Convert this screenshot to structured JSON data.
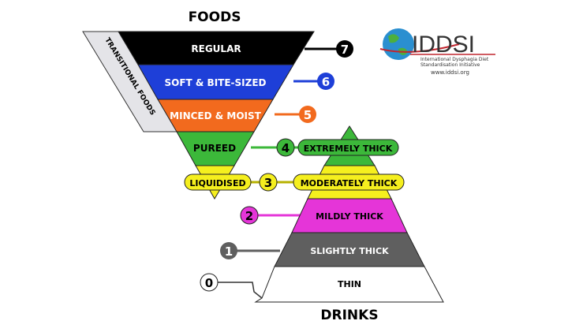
{
  "title_foods": "FOODS",
  "title_drinks": "DRINKS",
  "transitional": "TRANSITIONAL FOODS",
  "levels": [
    {
      "num": "0",
      "label": "THIN",
      "color": "#ffffff",
      "text": "#000000"
    },
    {
      "num": "1",
      "label": "SLIGHTLY THICK",
      "color": "#5f5f5f",
      "text": "#ffffff"
    },
    {
      "num": "2",
      "label": "MILDLY THICK",
      "color": "#e535d8",
      "text": "#000000"
    },
    {
      "num": "3",
      "label": "MODERATELY THICK",
      "food_label": "LIQUIDISED",
      "color": "#f5ef1e",
      "text": "#000000"
    },
    {
      "num": "4",
      "label": "EXTREMELY THICK",
      "food_label": "PUREED",
      "color": "#3cb83a",
      "text": "#000000"
    },
    {
      "num": "5",
      "food_label": "MINCED & MOIST",
      "color": "#f26a1e",
      "text": "#ffffff"
    },
    {
      "num": "6",
      "food_label": "SOFT & BITE-SIZED",
      "color": "#1e3fd8",
      "text": "#ffffff"
    },
    {
      "num": "7",
      "food_label": "REGULAR",
      "color": "#000000",
      "text": "#ffffff"
    }
  ],
  "logo": {
    "name": "IDDSI",
    "subtitle_1": "International Dysphagia Diet",
    "subtitle_2": "Standardisation Initiative",
    "url": "www.iddsi.org",
    "accent": "#c0262f"
  }
}
